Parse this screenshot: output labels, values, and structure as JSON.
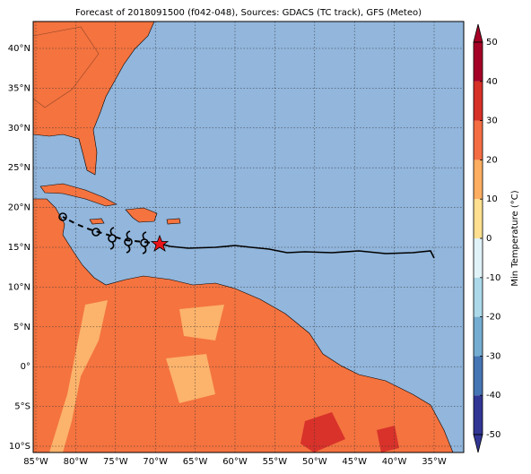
{
  "title": "Forecast of 2018091500 (f042-048), Sources: GDACS (TC track), GFS (Meteo)",
  "lon_labels": [
    "85°W",
    "80°W",
    "75°W",
    "70°W",
    "65°W",
    "60°W",
    "55°W",
    "50°W",
    "45°W",
    "40°W",
    "35°W"
  ],
  "lat_labels": [
    "40°N",
    "35°N",
    "30°N",
    "25°N",
    "20°N",
    "15°N",
    "10°N",
    "5°N",
    "0°",
    "5°S",
    "10°S"
  ],
  "colorbar": {
    "label": "Min Temperature (°C)",
    "range": [
      -50,
      50
    ],
    "ticks": [
      50,
      40,
      30,
      20,
      10,
      0,
      -10,
      -20,
      -30,
      -40,
      -50
    ],
    "colors": [
      "#313695",
      "#4575b4",
      "#74add1",
      "#abd9e9",
      "#e0f3f8",
      "#fee090",
      "#fdae61",
      "#f46d43",
      "#d73027",
      "#a50026"
    ]
  }
}
